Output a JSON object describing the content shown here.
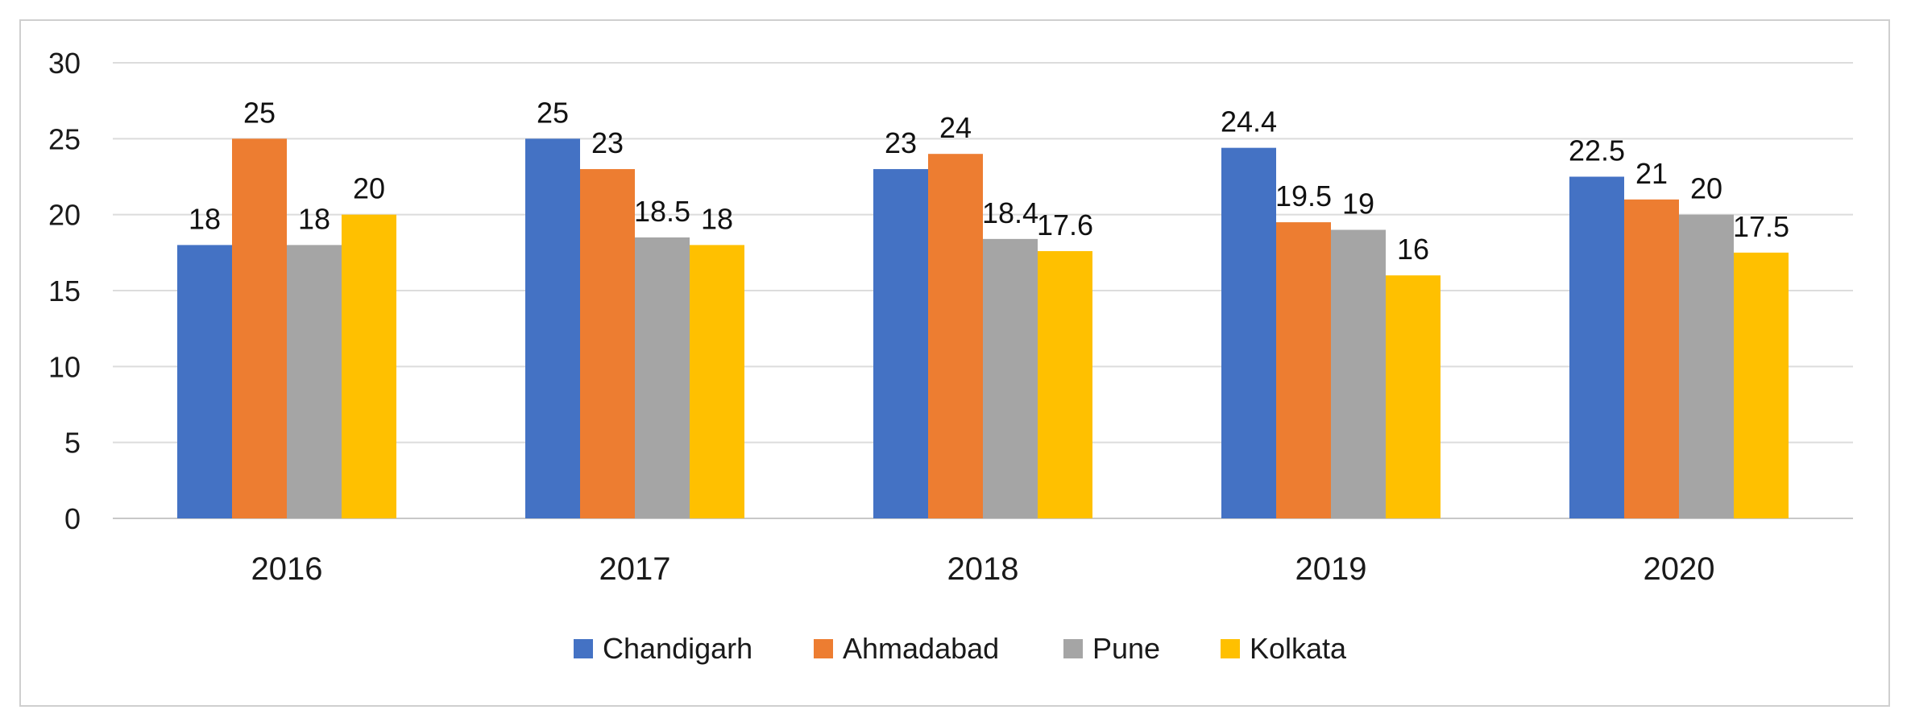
{
  "chart_data": {
    "type": "bar",
    "categories": [
      "2016",
      "2017",
      "2018",
      "2019",
      "2020"
    ],
    "series": [
      {
        "name": "Chandigarh",
        "color": "#4472C4",
        "values": [
          18,
          25,
          23,
          24.4,
          22.5
        ]
      },
      {
        "name": "Ahmadabad",
        "color": "#ED7D31",
        "values": [
          25,
          23,
          24,
          19.5,
          21
        ]
      },
      {
        "name": "Pune",
        "color": "#A5A5A5",
        "values": [
          18,
          18.5,
          18.4,
          19,
          20
        ]
      },
      {
        "name": "Kolkata",
        "color": "#FFC000",
        "values": [
          20,
          18,
          17.6,
          16,
          17.5
        ]
      }
    ],
    "data_labels": [
      [
        "18",
        "25",
        "23",
        "24.4",
        "22.5"
      ],
      [
        "25",
        "23",
        "24",
        "19.5",
        "21"
      ],
      [
        "18",
        "18.5",
        "18.4",
        "19",
        "20"
      ],
      [
        "20",
        "18",
        "17.6",
        "16",
        "17.5"
      ]
    ],
    "yticks": [
      "0",
      "5",
      "10",
      "15",
      "20",
      "25",
      "30"
    ],
    "ylim": [
      0,
      30
    ],
    "grid": true,
    "legend_position": "bottom",
    "title": "",
    "xlabel": "",
    "ylabel": ""
  }
}
